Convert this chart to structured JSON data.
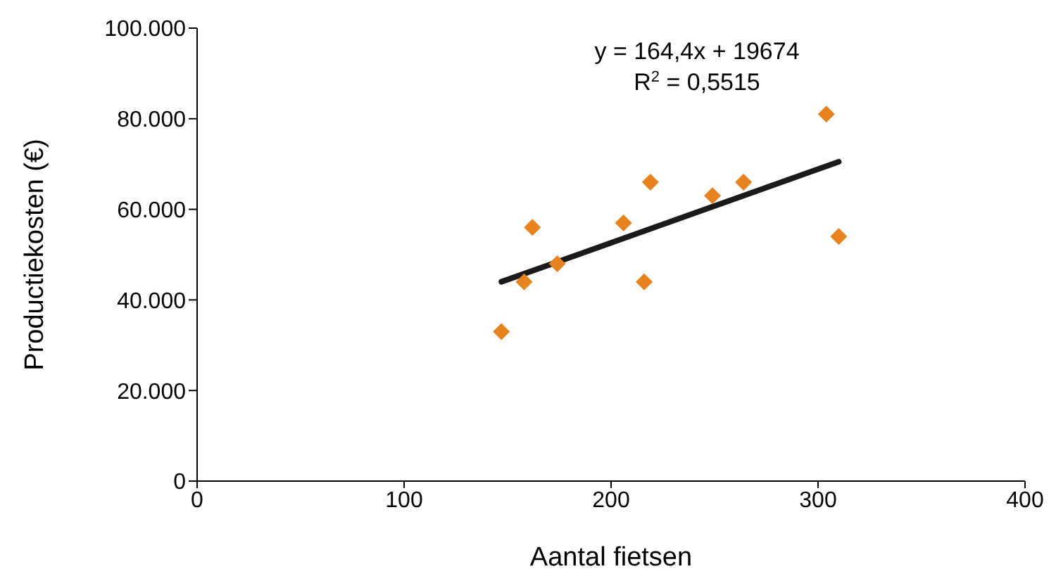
{
  "chart_data": {
    "type": "scatter",
    "xlabel": "Aantal fietsen",
    "ylabel": "Productiekosten (€)",
    "xlim": [
      0,
      400
    ],
    "xticks": [
      0,
      100,
      200,
      300,
      400
    ],
    "ylim": [
      0,
      100000
    ],
    "yticks": [
      {
        "value": 0,
        "label": "0"
      },
      {
        "value": 20000,
        "label": "20.000"
      },
      {
        "value": 40000,
        "label": "40.000"
      },
      {
        "value": 60000,
        "label": "60.000"
      },
      {
        "value": 80000,
        "label": "80.000"
      },
      {
        "value": 100000,
        "label": "100.000"
      }
    ],
    "grid": false,
    "legend": false,
    "marker": "diamond",
    "annotations": [
      "y = 164,4x + 19674",
      "R$^{2}$ = 0,5515"
    ],
    "series": [
      {
        "color": "#e8821e",
        "x": [
          147,
          158,
          162,
          174,
          206,
          216,
          219,
          249,
          264,
          304,
          310
        ],
        "values": [
          33000,
          44000,
          56000,
          48000,
          57000,
          44000,
          66000,
          63000,
          66000,
          81000,
          54000
        ]
      },
      {
        "type": "line",
        "color": "#1a1a1a",
        "x": [
          147,
          310
        ],
        "values": [
          44000,
          70500
        ],
        "marker": "none",
        "line_style": "solid"
      }
    ]
  }
}
